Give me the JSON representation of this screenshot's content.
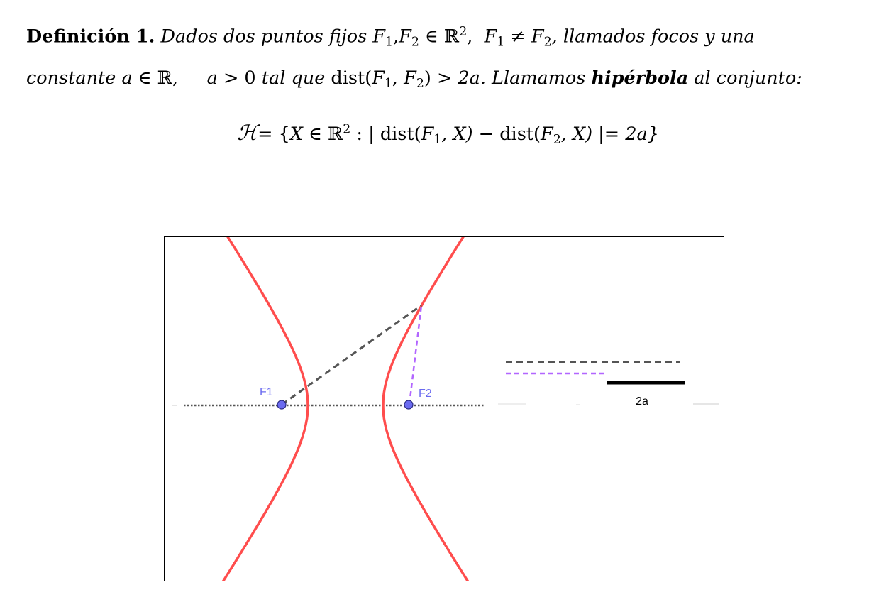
{
  "definition": {
    "heading": "Definición 1.",
    "line1": {
      "t1": "Dados dos puntos fijos",
      "F": "F",
      "s1": "1",
      "comma": ",",
      "s2": "2",
      "in": "∈",
      "R": "ℝ",
      "exp2": "2",
      "comma2": ",",
      "ne": "≠",
      "t2": ", llamados focos y una"
    },
    "line2": {
      "t1": "constante",
      "a": "a",
      "in": "∈",
      "R": "ℝ",
      "comma": ",",
      "gt0": "> 0",
      "t2": "tal que",
      "dist": "dist",
      "open": "(",
      "close": ")",
      "gt2a": "> 2a",
      "t3": ". Llamamos",
      "bold_word": "hipérbola",
      "t4": "al conjunto:"
    }
  },
  "formula": {
    "H": "ℋ",
    "eq": "= {",
    "X": "X",
    "in": "∈",
    "R": "ℝ",
    "exp2": "2",
    "colon": ": |",
    "dist": "dist",
    "F1open": "(",
    "F": "F",
    "s1": "1",
    "s2": "2",
    "commaX": ", X)",
    "minus": "−",
    "end": "|= 2a}"
  },
  "figure": {
    "focus1_label": "F1",
    "focus2_label": "F2",
    "segment_label": "2a",
    "colors": {
      "hyperbola": "#ff4d4d",
      "focus_fill": "#6b6bf0",
      "focus_label": "#6b6bf0",
      "dist_f1": "#555555",
      "dist_f2": "#b266ff",
      "axis": "#555555",
      "segment_2a": "#000000"
    }
  }
}
